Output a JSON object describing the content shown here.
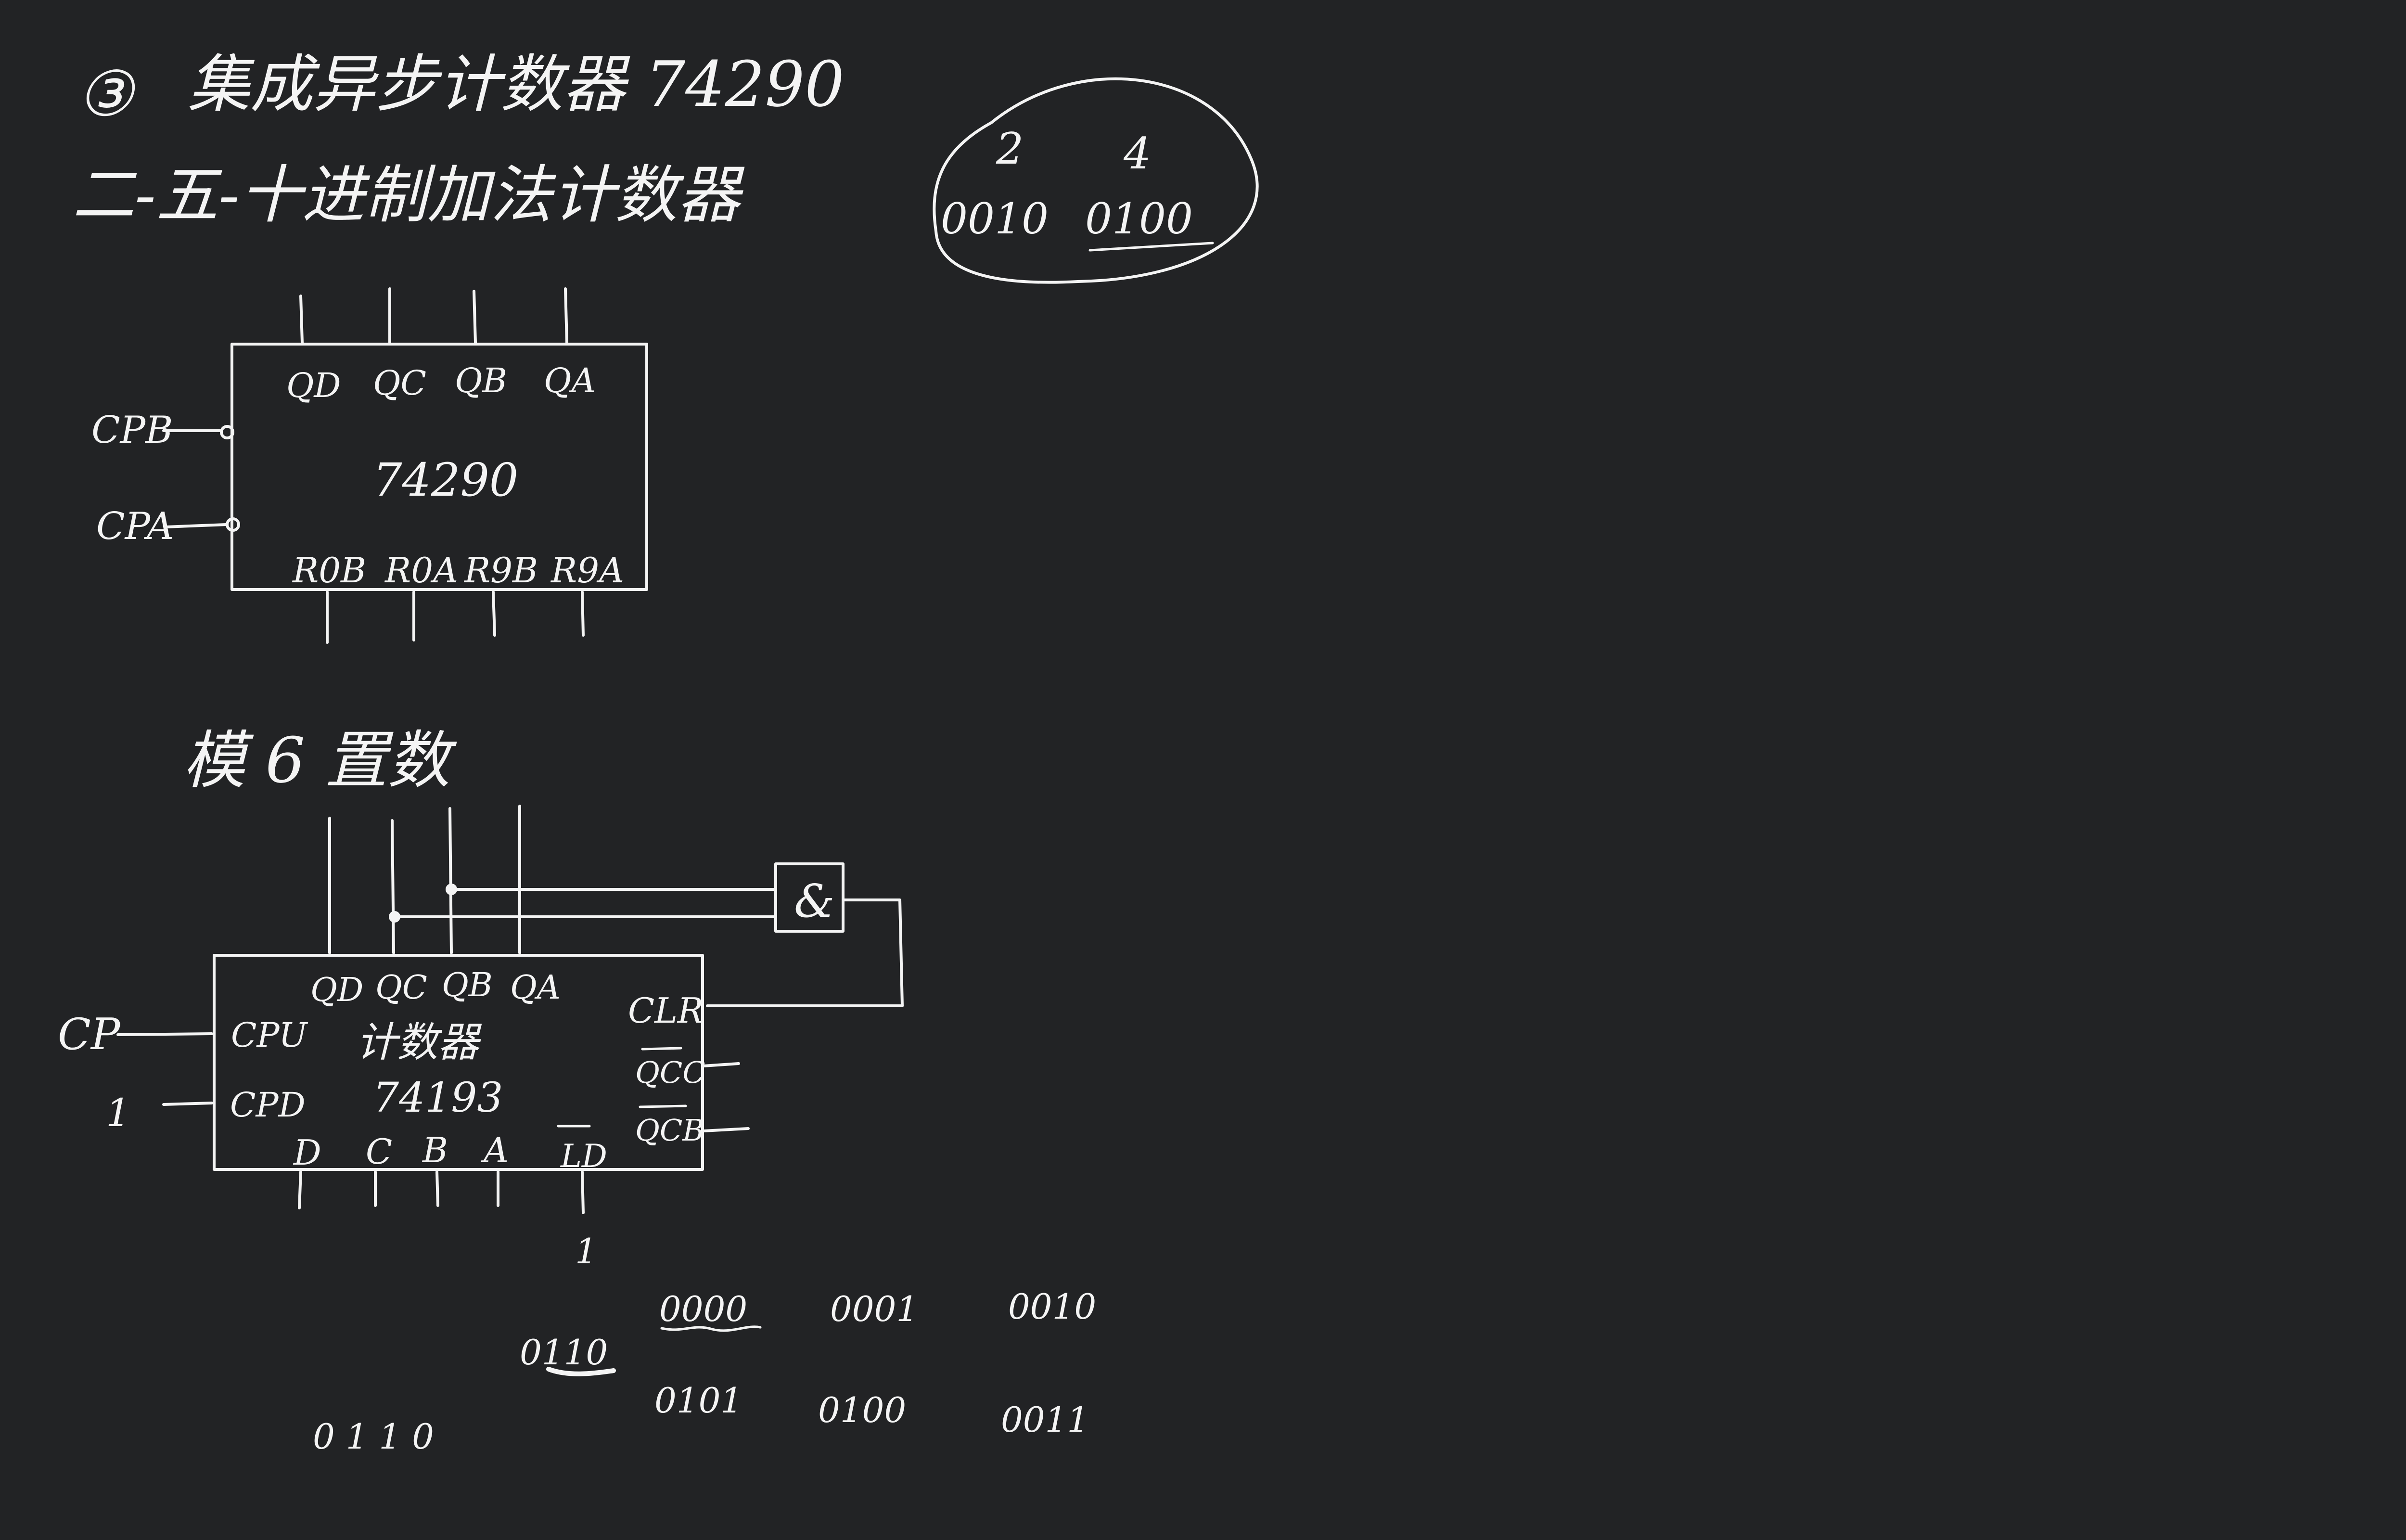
{
  "title": {
    "number": "③",
    "line1": "集成异步计数器 74290",
    "line2": "二-五-十进制加法计数器"
  },
  "note": {
    "top": [
      "2",
      "4"
    ],
    "bottom": [
      "0010",
      "0100"
    ]
  },
  "chip74290": {
    "name": "74290",
    "outputs": [
      "QD",
      "QC",
      "QB",
      "QA"
    ],
    "clocks": [
      "CPB",
      "CPA"
    ],
    "resets": [
      "R0B",
      "R0A",
      "R9B",
      "R9A"
    ]
  },
  "section2_title": "模 6 置数",
  "chip74193": {
    "name_cn": "计数器",
    "name": "74193",
    "outputs": [
      "QD",
      "QC",
      "QB",
      "QA"
    ],
    "inputs_left": [
      "CPU",
      "CPD"
    ],
    "ext_left": [
      "CP",
      "1"
    ],
    "right": [
      "CLR",
      "QCC",
      "QCB"
    ],
    "inputs_bottom": [
      "D",
      "C",
      "B",
      "A",
      "LD"
    ],
    "ld_value": "1",
    "gate": "&"
  },
  "sequence": {
    "row1": [
      "0000",
      "0001",
      "0010"
    ],
    "row2": [
      "0101",
      "0100",
      "0011"
    ],
    "extra": "0110",
    "extra2": "0 1 1 0"
  }
}
